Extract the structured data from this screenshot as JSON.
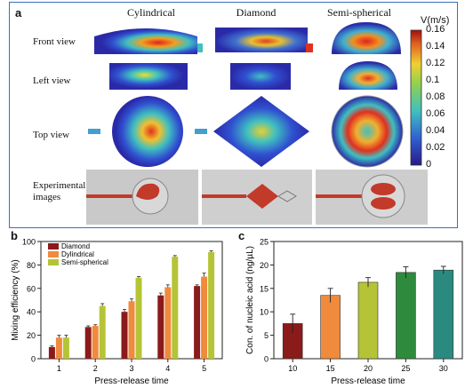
{
  "panel_a": {
    "label": "a",
    "columns": [
      "Cylindrical",
      "Diamond",
      "Semi-spherical"
    ],
    "rows": [
      "Front view",
      "Left view",
      "Top view",
      "Experimental images"
    ],
    "colorbar": {
      "title": "V(m/s)",
      "ticks": [
        "0.16",
        "0.14",
        "0.12",
        "0.1",
        "0.08",
        "0.06",
        "0.04",
        "0.02",
        "0"
      ]
    }
  },
  "chart_data": [
    {
      "type": "bar",
      "panel": "b",
      "categories": [
        "1",
        "2",
        "3",
        "4",
        "5"
      ],
      "series": [
        {
          "name": "Diamond",
          "color": "#8b1a1a",
          "values": [
            10,
            27,
            40,
            54,
            62
          ],
          "errors": [
            1,
            1,
            2,
            2,
            1
          ]
        },
        {
          "name": "Dylindrical",
          "color": "#f08a3c",
          "values": [
            18,
            28,
            49,
            61,
            70
          ],
          "errors": [
            2,
            1,
            2,
            2,
            3
          ]
        },
        {
          "name": "Semi-spherical",
          "color": "#b5c436",
          "values": [
            18,
            45,
            69,
            87,
            91
          ],
          "errors": [
            2,
            2,
            1,
            1,
            1
          ]
        }
      ],
      "xlabel": "Press-release time",
      "ylabel": "Mixing efficiency (%)",
      "ylim": [
        0,
        100
      ],
      "yticks": [
        "0",
        "20",
        "40",
        "60",
        "80",
        "100"
      ]
    },
    {
      "type": "bar",
      "panel": "c",
      "categories": [
        "10",
        "15",
        "20",
        "25",
        "30"
      ],
      "values": [
        7.5,
        13.5,
        16.3,
        18.4,
        18.9
      ],
      "errors": [
        2.0,
        1.5,
        1.0,
        1.2,
        0.8
      ],
      "colors": [
        "#8b1a1a",
        "#f08a3c",
        "#b5c436",
        "#2e8b3e",
        "#2a8a80"
      ],
      "xlabel": "Press-release time",
      "ylabel": "Con. of nucleic acid (ng/µL)",
      "ylim": [
        0,
        25
      ],
      "yticks": [
        "0",
        "5",
        "10",
        "15",
        "20",
        "25"
      ]
    }
  ]
}
